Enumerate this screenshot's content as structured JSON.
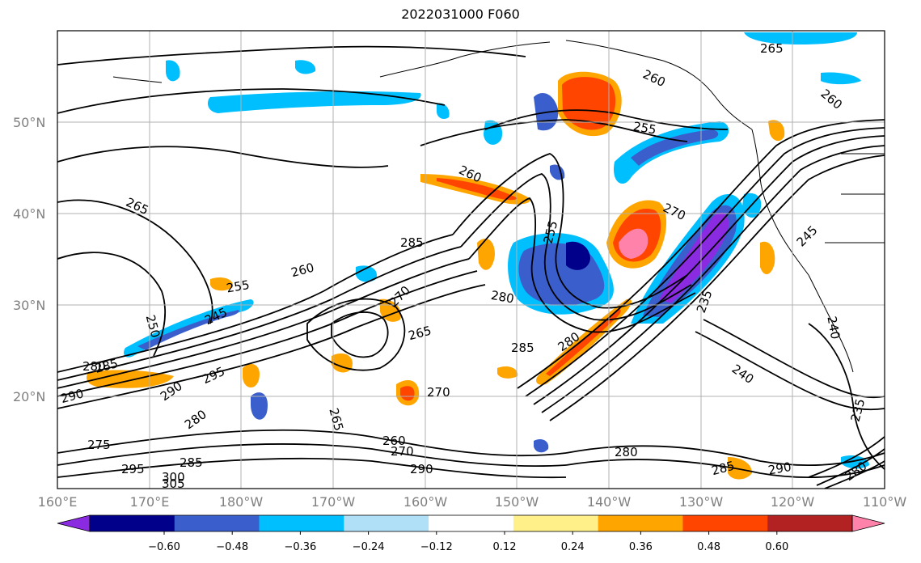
{
  "title": "2022031000 F060",
  "x_ticks": [
    "160°E",
    "170°E",
    "180°W",
    "170°W",
    "160°W",
    "150°W",
    "140°W",
    "130°W",
    "120°W",
    "110°W"
  ],
  "y_ticks": [
    "50°N",
    "40°N",
    "30°N",
    "20°N"
  ],
  "colorbar": {
    "levels": [
      "−0.60",
      "−0.48",
      "−0.36",
      "−0.24",
      "−0.12",
      "0.12",
      "0.24",
      "0.36",
      "0.48",
      "0.60"
    ],
    "colors": [
      "#8a2be2",
      "#00008b",
      "#3a5fcd",
      "#00bfff",
      "#b0e0f8",
      "#ffffff",
      "#fff08a",
      "#ffa500",
      "#ff4500",
      "#b22222",
      "#ff82ab"
    ]
  },
  "contour_labels": [
    "265",
    "260",
    "255",
    "260",
    "265",
    "285",
    "255",
    "270",
    "260",
    "255",
    "245",
    "250",
    "280",
    "280",
    "265",
    "285",
    "285",
    "280",
    "290",
    "295",
    "290",
    "280",
    "275",
    "285",
    "270",
    "265",
    "260",
    "270",
    "290",
    "280",
    "285",
    "290",
    "240",
    "235",
    "235",
    "260",
    "300",
    "305",
    "295",
    "270",
    "245",
    "240",
    "280"
  ]
}
